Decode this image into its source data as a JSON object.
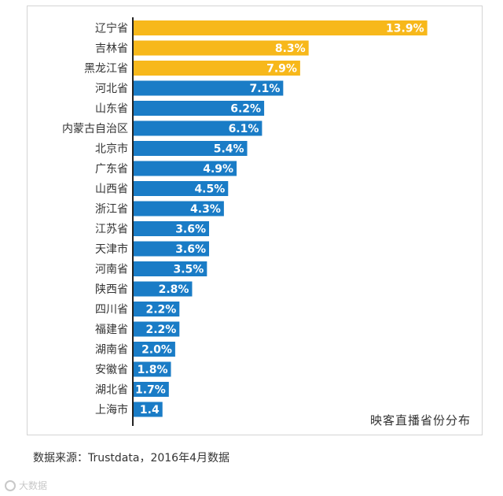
{
  "chart_data": {
    "type": "bar",
    "orientation": "horizontal",
    "title": "映客直播省份分布",
    "categories": [
      "辽宁省",
      "吉林省",
      "黑龙江省",
      "河北省",
      "山东省",
      "内蒙古自治区",
      "北京市",
      "广东省",
      "山西省",
      "浙江省",
      "江苏省",
      "天津市",
      "河南省",
      "陕西省",
      "四川省",
      "福建省",
      "湖南省",
      "安徽省",
      "湖北省",
      "上海市"
    ],
    "values": [
      13.9,
      8.3,
      7.9,
      7.1,
      6.2,
      6.1,
      5.4,
      4.9,
      4.5,
      4.3,
      3.6,
      3.6,
      3.5,
      2.8,
      2.2,
      2.2,
      2.0,
      1.8,
      1.7,
      1.4
    ],
    "value_labels": [
      "13.9%",
      "8.3%",
      "7.9%",
      "7.1%",
      "6.2%",
      "6.1%",
      "5.4%",
      "4.9%",
      "4.5%",
      "4.3%",
      "3.6%",
      "3.6%",
      "3.5%",
      "2.8%",
      "2.2%",
      "2.2%",
      "2.0%",
      "1.8%",
      "1.7%",
      "1.4"
    ],
    "highlight_top_n": 3,
    "colors": {
      "highlight": "#f7b81b",
      "default": "#1a7cc6",
      "axis": "#222222"
    },
    "xlim": [
      0,
      14.1
    ],
    "grid": false,
    "legend": "none"
  },
  "source_note": "数据来源：Trustdata，2016年4月数据",
  "watermark": "大数据"
}
